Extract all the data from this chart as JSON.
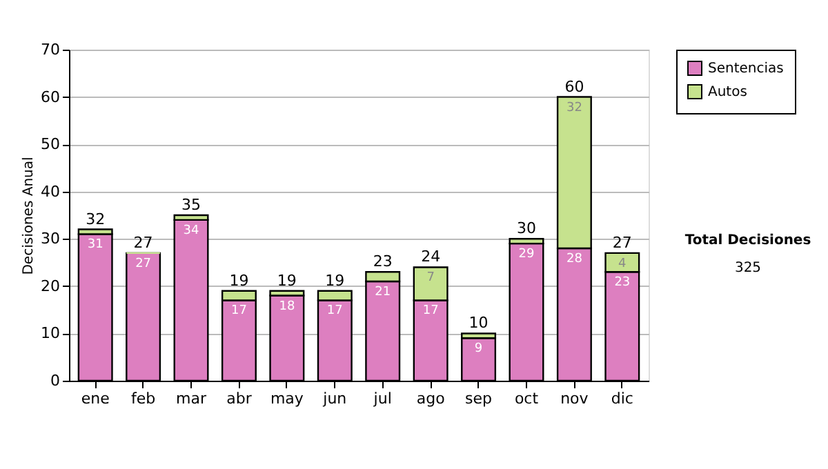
{
  "chart_data": {
    "type": "bar",
    "stacked": true,
    "ylabel": "Decisiones Anual",
    "categories": [
      "ene",
      "feb",
      "mar",
      "abr",
      "may",
      "jun",
      "jul",
      "ago",
      "sep",
      "oct",
      "nov",
      "dic"
    ],
    "series": [
      {
        "name": "Sentencias",
        "color": "#dd7fc0",
        "values": [
          31,
          27,
          34,
          17,
          18,
          17,
          21,
          17,
          9,
          29,
          28,
          23
        ],
        "value_labels": [
          "31",
          "27",
          "34",
          "17",
          "18",
          "17",
          "21",
          "17",
          "9",
          "29",
          "28",
          "23"
        ]
      },
      {
        "name": "Autos",
        "color": "#c6e28e",
        "values": [
          1,
          0,
          1,
          2,
          1,
          2,
          2,
          7,
          1,
          1,
          32,
          4
        ],
        "value_labels": [
          null,
          null,
          null,
          null,
          null,
          null,
          null,
          "7",
          null,
          null,
          "32",
          "4"
        ]
      }
    ],
    "totals": [
      "32",
      "27",
      "35",
      "19",
      "19",
      "19",
      "23",
      "24",
      "10",
      "30",
      "60",
      "27"
    ],
    "ylim": [
      0,
      70
    ],
    "yticks": [
      0,
      10,
      20,
      30,
      40,
      50,
      60,
      70
    ],
    "grid": "y",
    "legend": "right",
    "annotations": [
      "Total Decisiones",
      "325"
    ]
  }
}
